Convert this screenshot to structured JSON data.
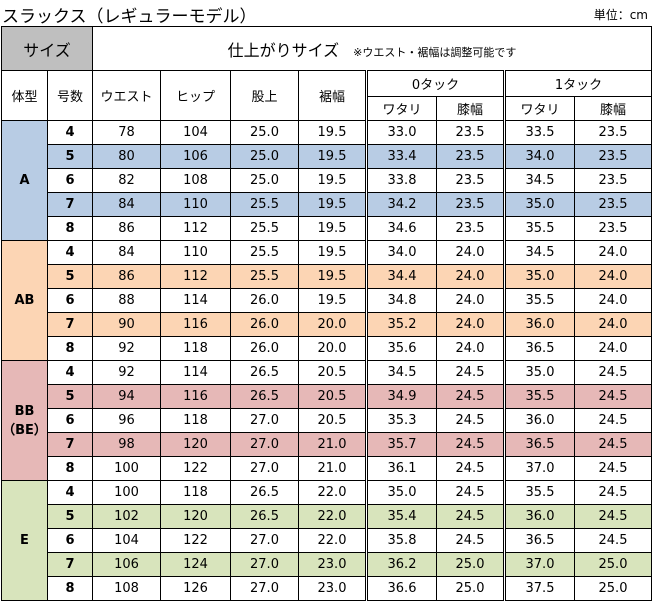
{
  "title": "スラックス（レギュラーモデル）",
  "unit": "単位：cm",
  "header": {
    "size": "サイズ",
    "finished": "仕上がりサイズ",
    "note": "※ウエスト・裾幅は調整可能です",
    "columns": [
      "体型",
      "号数",
      "ウエスト",
      "ヒップ",
      "股上",
      "裾幅"
    ],
    "tucks": [
      {
        "name": "0タック",
        "columns": [
          "ワタリ",
          "膝幅"
        ]
      },
      {
        "name": "1タック",
        "columns": [
          "ワタリ",
          "膝幅"
        ]
      }
    ]
  },
  "groups": [
    {
      "label": "A",
      "color": "#b8cce4",
      "rows": [
        [
          "4",
          "78",
          "104",
          "25.0",
          "19.5",
          "33.0",
          "23.5",
          "33.5",
          "23.5"
        ],
        [
          "5",
          "80",
          "106",
          "25.0",
          "19.5",
          "33.4",
          "23.5",
          "34.0",
          "23.5"
        ],
        [
          "6",
          "82",
          "108",
          "25.0",
          "19.5",
          "33.8",
          "23.5",
          "34.5",
          "23.5"
        ],
        [
          "7",
          "84",
          "110",
          "25.5",
          "19.5",
          "34.2",
          "23.5",
          "35.0",
          "23.5"
        ],
        [
          "8",
          "86",
          "112",
          "25.5",
          "19.5",
          "34.6",
          "23.5",
          "35.5",
          "23.5"
        ]
      ]
    },
    {
      "label": "AB",
      "color": "#fcd5b4",
      "rows": [
        [
          "4",
          "84",
          "110",
          "25.5",
          "19.5",
          "34.0",
          "24.0",
          "34.5",
          "24.0"
        ],
        [
          "5",
          "86",
          "112",
          "25.5",
          "19.5",
          "34.4",
          "24.0",
          "35.0",
          "24.0"
        ],
        [
          "6",
          "88",
          "114",
          "26.0",
          "19.5",
          "34.8",
          "24.0",
          "35.5",
          "24.0"
        ],
        [
          "7",
          "90",
          "116",
          "26.0",
          "20.0",
          "35.2",
          "24.0",
          "36.0",
          "24.0"
        ],
        [
          "8",
          "92",
          "118",
          "26.0",
          "20.0",
          "35.6",
          "24.0",
          "36.5",
          "24.0"
        ]
      ]
    },
    {
      "label": "BB",
      "sublabel": "（BE）",
      "color": "#e6b8b7",
      "rows": [
        [
          "4",
          "92",
          "114",
          "26.5",
          "20.5",
          "34.5",
          "24.5",
          "35.0",
          "24.5"
        ],
        [
          "5",
          "94",
          "116",
          "26.5",
          "20.5",
          "34.9",
          "24.5",
          "35.5",
          "24.5"
        ],
        [
          "6",
          "96",
          "118",
          "27.0",
          "20.5",
          "35.3",
          "24.5",
          "36.0",
          "24.5"
        ],
        [
          "7",
          "98",
          "120",
          "27.0",
          "21.0",
          "35.7",
          "24.5",
          "36.5",
          "24.5"
        ],
        [
          "8",
          "100",
          "122",
          "27.0",
          "21.0",
          "36.1",
          "24.5",
          "37.0",
          "24.5"
        ]
      ]
    },
    {
      "label": "E",
      "color": "#d8e4bc",
      "rows": [
        [
          "4",
          "100",
          "118",
          "26.5",
          "22.0",
          "35.0",
          "24.5",
          "35.5",
          "24.5"
        ],
        [
          "5",
          "102",
          "120",
          "26.5",
          "22.0",
          "35.4",
          "24.5",
          "36.0",
          "24.5"
        ],
        [
          "6",
          "104",
          "122",
          "27.0",
          "22.0",
          "35.8",
          "24.5",
          "36.5",
          "24.5"
        ],
        [
          "7",
          "106",
          "124",
          "27.0",
          "23.0",
          "36.2",
          "25.0",
          "37.0",
          "25.0"
        ],
        [
          "8",
          "108",
          "126",
          "27.0",
          "23.0",
          "36.6",
          "25.0",
          "37.5",
          "25.0"
        ]
      ]
    }
  ]
}
